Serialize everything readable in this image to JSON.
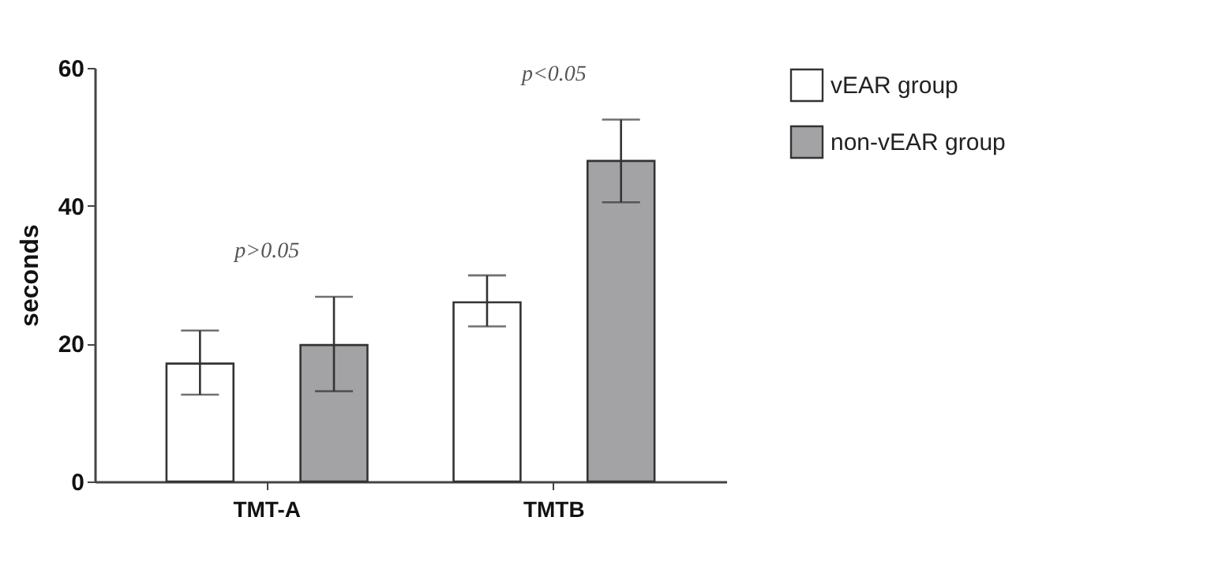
{
  "chart_data": {
    "type": "bar",
    "ylabel": "seconds",
    "categories": [
      "TMT-A",
      "TMTB"
    ],
    "series": [
      {
        "name": "vEAR group",
        "color": "#ffffff",
        "values": [
          17.1,
          26.0
        ],
        "errors": [
          [
            12.6,
            21.9
          ],
          [
            22.5,
            29.9
          ]
        ]
      },
      {
        "name": "non-vEAR group",
        "color": "#a3a3a6",
        "values": [
          19.8,
          46.5
        ],
        "errors": [
          [
            13.1,
            26.8
          ],
          [
            40.5,
            52.5
          ]
        ]
      }
    ],
    "ylim": [
      0,
      60
    ],
    "yticks": [
      0,
      20,
      40,
      60
    ],
    "grid": false,
    "legend": "top right",
    "annotations": [
      "p>0.05",
      "p<0.05"
    ]
  }
}
